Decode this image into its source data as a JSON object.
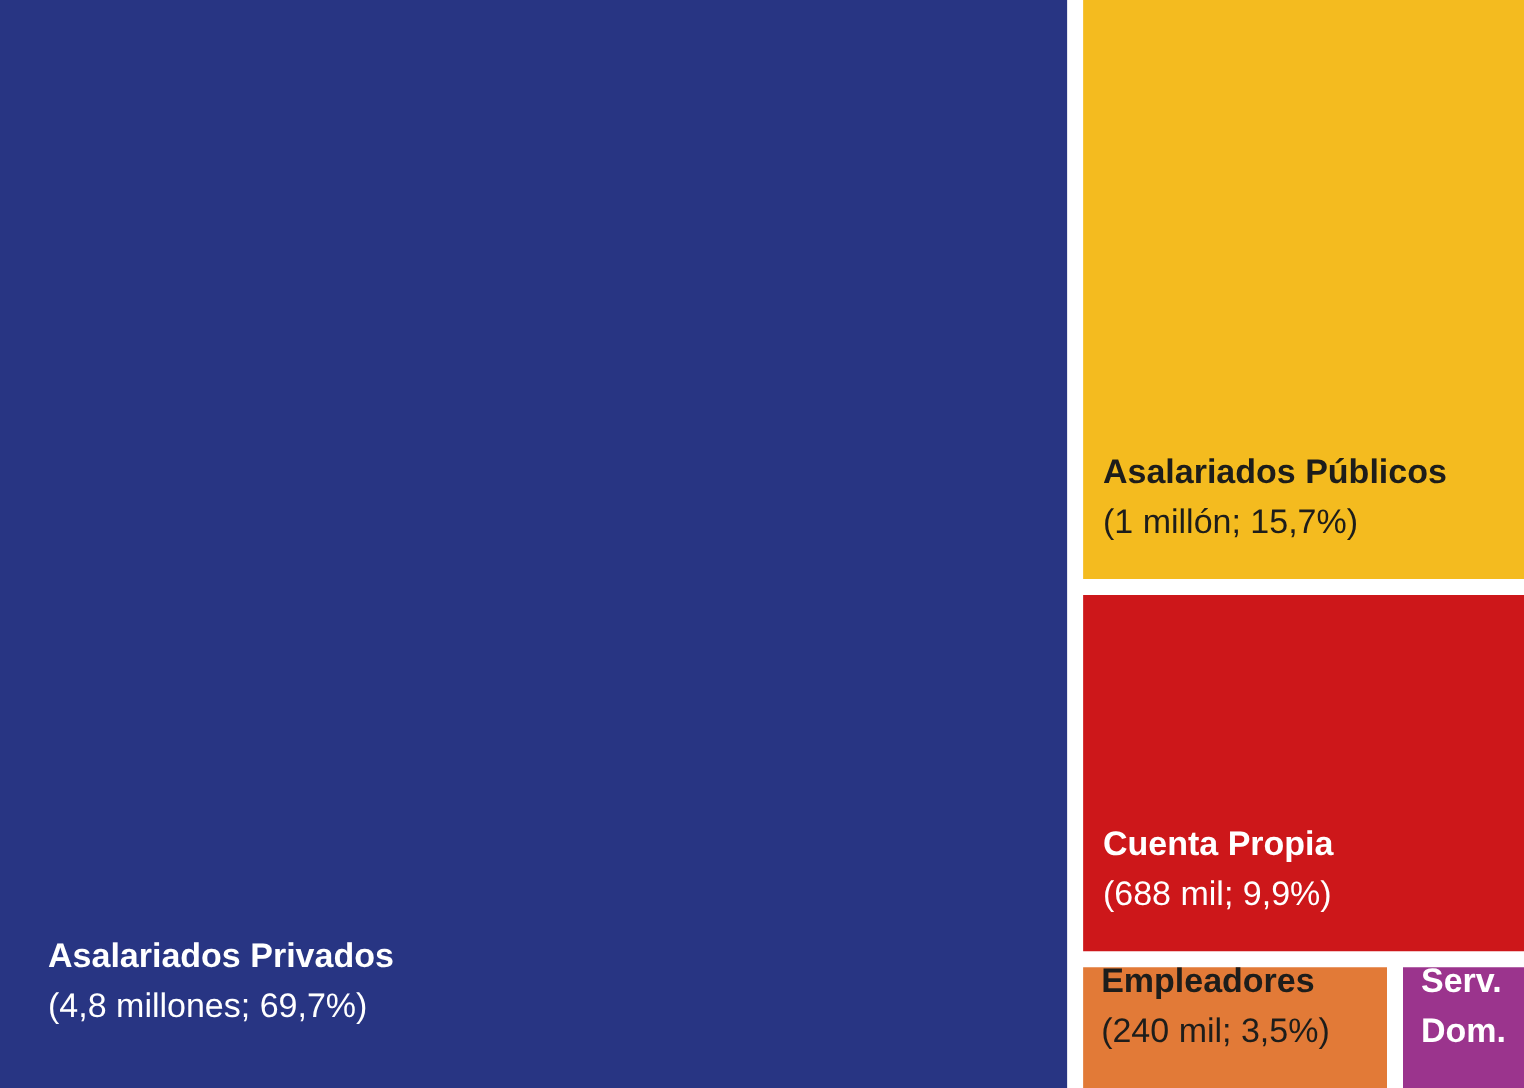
{
  "chart_data": {
    "type": "other",
    "categories": [
      "Asalariados Privados",
      "Asalariados Públicos",
      "Cuenta Propia",
      "Empleadores",
      "Serv. Dom."
    ],
    "values": [
      69.7,
      15.7,
      9.9,
      3.5,
      null
    ],
    "colors": [
      "#283583",
      "#f4bb1f",
      "#cd171a",
      "#e27a37",
      "#9b348d"
    ],
    "value_labels": [
      "(4,8 millones; 69,7%)",
      "(1 millón; 15,7%)",
      "(688 mil; 9,9%)",
      "(240 mil; 3,5%)",
      null
    ]
  }
}
